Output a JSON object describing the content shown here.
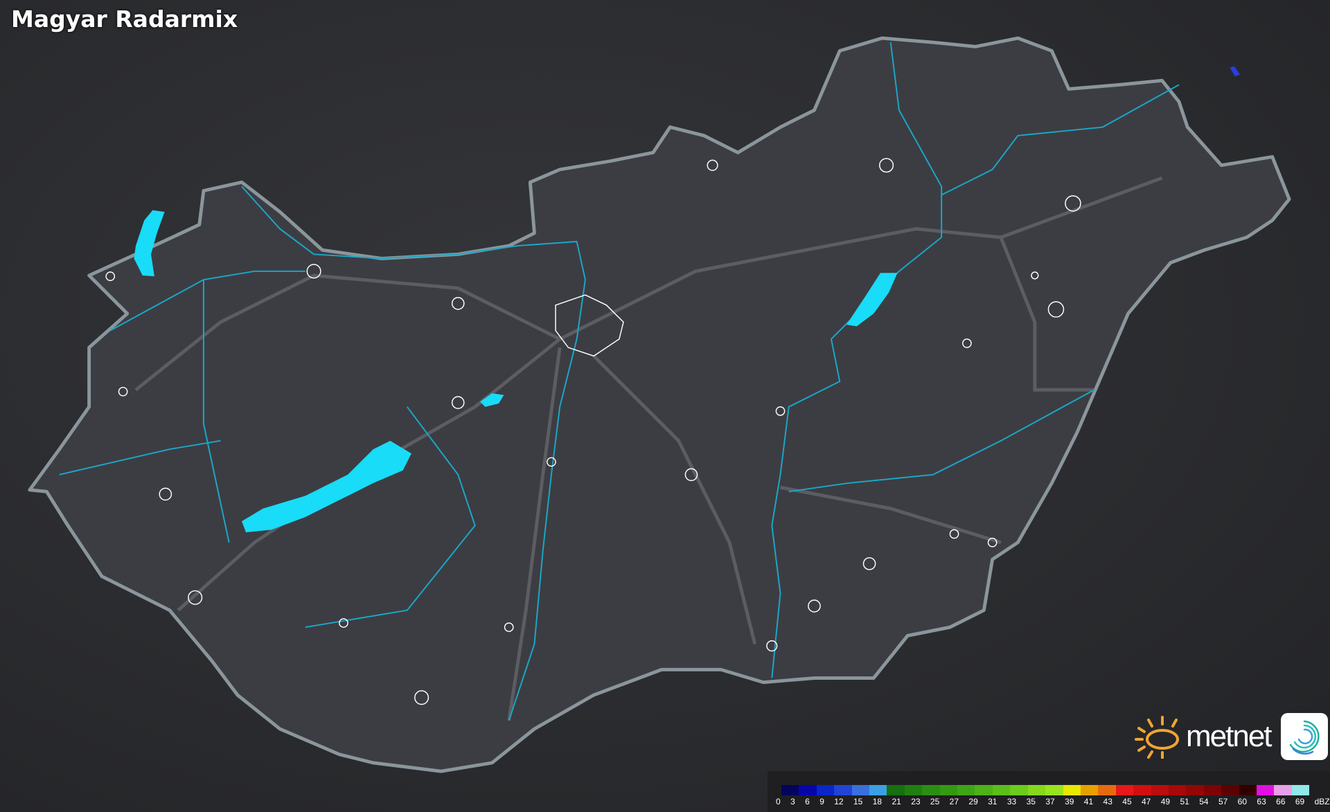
{
  "title": "Magyar Radarmix",
  "logo": {
    "text": "metnet",
    "sun_color": "#f2a531"
  },
  "legend": {
    "unit": "dBZ",
    "labels": [
      "0",
      "3",
      "6",
      "9",
      "12",
      "15",
      "18",
      "21",
      "23",
      "25",
      "27",
      "29",
      "31",
      "33",
      "35",
      "37",
      "39",
      "41",
      "43",
      "45",
      "47",
      "49",
      "51",
      "54",
      "57",
      "60",
      "63",
      "66",
      "69"
    ],
    "colors": [
      "#04045e",
      "#0505a8",
      "#0a25c8",
      "#2244d6",
      "#3a70dd",
      "#3aa0e6",
      "#157010",
      "#1f8010",
      "#2a8e12",
      "#349a14",
      "#3ea516",
      "#4cb218",
      "#5cbe18",
      "#6ccc1a",
      "#86d81c",
      "#98e41e",
      "#e8e800",
      "#e8a000",
      "#e86a10",
      "#e81818",
      "#d01010",
      "#bc0c0c",
      "#a80808",
      "#940606",
      "#7c0404",
      "#5c0202",
      "#300000",
      "#e010e0",
      "#e8a0e8",
      "#90e8e8"
    ]
  },
  "map": {
    "border_color": "#8ab0c0",
    "river_color": "#1aa8c8",
    "lake_color": "#18dcf8",
    "city_outline_color": "#ffffff"
  }
}
